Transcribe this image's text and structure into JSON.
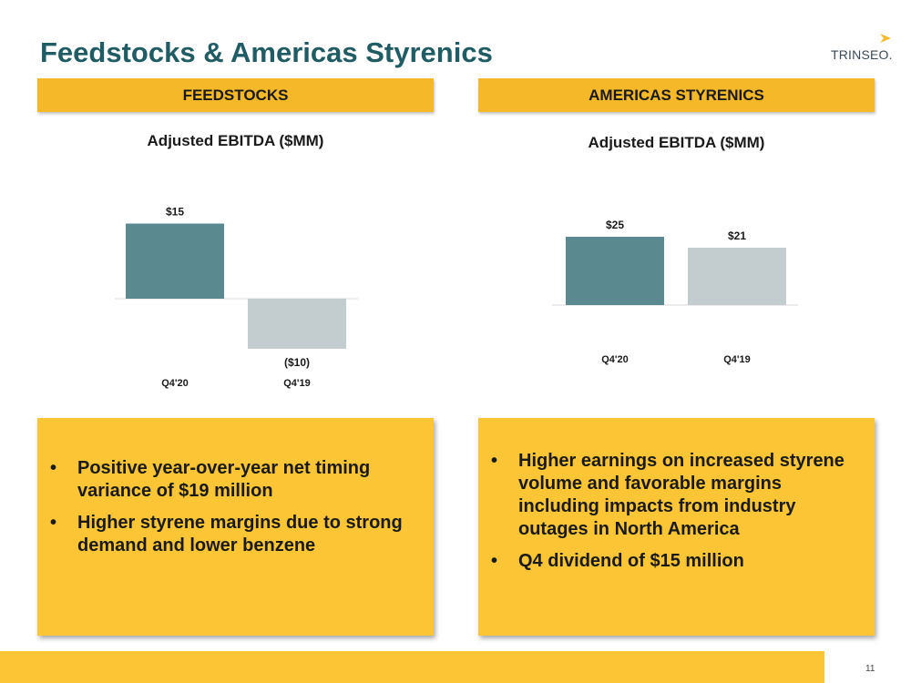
{
  "page": {
    "title": "Feedstocks & Americas Styrenics",
    "logo_text": "TRINSEO.",
    "page_number": "11"
  },
  "colors": {
    "title": "#1f5c63",
    "header_bg": "#f4b828",
    "callout_bg": "#fbc535",
    "bar_current": "#5a8a90",
    "bar_prior": "#c3ccce"
  },
  "sections": [
    {
      "header": "FEEDSTOCKS",
      "bullets": [
        "Positive year-over-year net timing variance of $19 million",
        "Higher styrene margins due to strong demand and lower benzene"
      ]
    },
    {
      "header": "AMERICAS STYRENICS",
      "bullets": [
        "Higher earnings on increased styrene volume and favorable margins including impacts from industry outages in North America",
        "Q4 dividend of $15 million"
      ]
    }
  ],
  "chart_data": [
    {
      "type": "bar",
      "title": "Adjusted EBITDA ($MM)",
      "categories": [
        "Q4'20",
        "Q4'19"
      ],
      "values": [
        15,
        -10
      ],
      "data_labels": [
        "$15",
        "($10)"
      ],
      "xlabel": "",
      "ylabel": "",
      "grid": false
    },
    {
      "type": "bar",
      "title": "Adjusted EBITDA ($MM)",
      "categories": [
        "Q4'20",
        "Q4'19"
      ],
      "values": [
        25,
        21
      ],
      "data_labels": [
        "$25",
        "$21"
      ],
      "xlabel": "",
      "ylabel": "",
      "grid": false
    }
  ]
}
